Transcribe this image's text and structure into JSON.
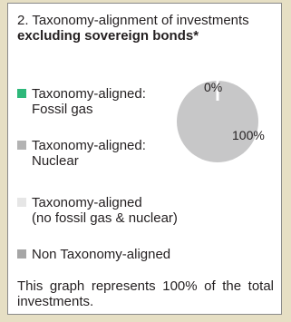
{
  "panel": {
    "title_plain": "2. Taxonomy-alignment of investments",
    "title_bold": "excluding sovereign bonds*",
    "footer": "This graph represents 100% of the total investments."
  },
  "legend": [
    {
      "line1": "Taxonomy-aligned:",
      "line2": "Fossil gas",
      "color": "#2eb87a"
    },
    {
      "line1": "Taxonomy-aligned:",
      "line2": "Nuclear",
      "color": "#b3b3b3"
    },
    {
      "line1": "Taxonomy-aligned",
      "line2": "(no fossil gas & nuclear)",
      "color": "#e6e6e6"
    },
    {
      "line1": "Non Taxonomy-aligned",
      "line2": "",
      "color": "#a6a6a6"
    }
  ],
  "chart_data": {
    "type": "pie",
    "categories": [
      "Taxonomy-aligned",
      "Non Taxonomy-aligned"
    ],
    "values": [
      0,
      100
    ],
    "labels": [
      "0%",
      "100%"
    ],
    "colors": [
      "#2eb87a",
      "#c7c7c8"
    ]
  }
}
